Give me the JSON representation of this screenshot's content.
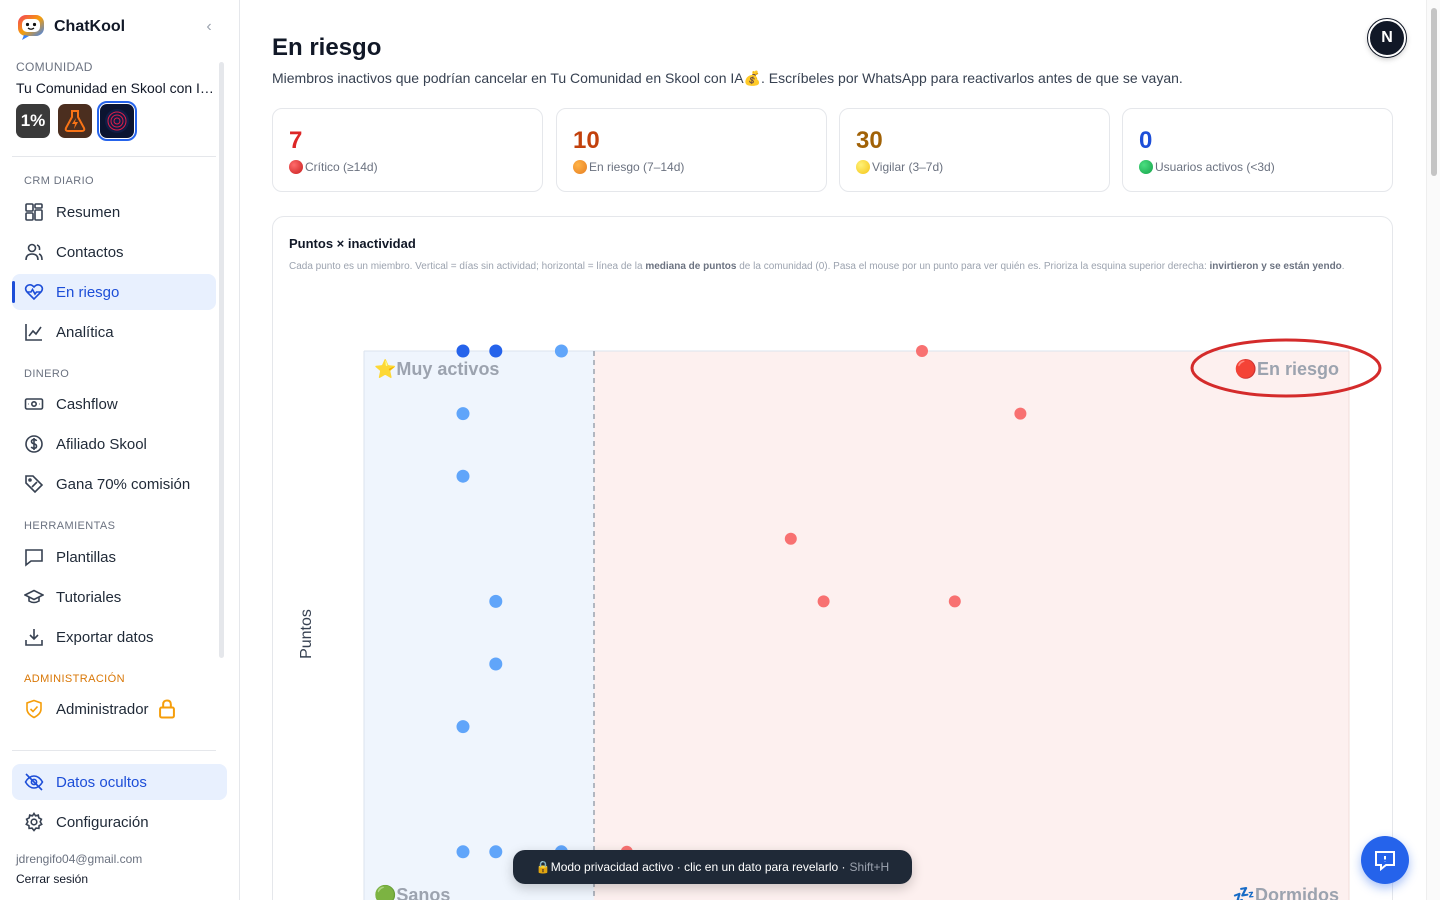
{
  "app": {
    "name": "ChatKool"
  },
  "sidebar": {
    "community_label": "COMUNIDAD",
    "community_name": "Tu Comunidad en Skool con IA💰",
    "community_avatars": [
      "1%",
      "⚡",
      ""
    ],
    "sections": {
      "crm": "CRM DIARIO",
      "money": "DINERO",
      "tools": "HERRAMIENTAS",
      "admin": "ADMINISTRACIÓN"
    },
    "items": {
      "resumen": "Resumen",
      "contactos": "Contactos",
      "en_riesgo": "En riesgo",
      "analitica": "Analítica",
      "cashflow": "Cashflow",
      "afiliado": "Afiliado Skool",
      "gana": "Gana 70% comisión",
      "plantillas": "Plantillas",
      "tutoriales": "Tutoriales",
      "exportar": "Exportar datos",
      "administrador": "Administrador"
    },
    "privacy_label": "Datos ocultos",
    "config_label": "Configuración",
    "user_email": "jdrengifo04@gmail.com",
    "logout_label": "Cerrar sesión"
  },
  "header": {
    "title": "En riesgo",
    "subtitle": "Miembros inactivos que podrían cancelar en Tu Comunidad en Skool con IA💰. Escríbeles por WhatsApp para reactivarlos antes de que se vayan.",
    "avatar_initial": "N"
  },
  "stats": [
    {
      "value": "7",
      "label": "Crítico (≥14d)",
      "color": "#dc2626",
      "dot": "red"
    },
    {
      "value": "10",
      "label": "En riesgo (7–14d)",
      "color": "#c2410c",
      "dot": "orange"
    },
    {
      "value": "30",
      "label": "Vigilar (3–7d)",
      "color": "#a16207",
      "dot": "yellow"
    },
    {
      "value": "0",
      "label": "Usuarios activos (<3d)",
      "color": "#1d4ed8",
      "dot": "green"
    }
  ],
  "chart_card": {
    "title": "Puntos × inactividad",
    "desc_1": "Cada punto es un miembro. Vertical = días sin actividad; horizontal = línea de la ",
    "desc_bold_1": "mediana de puntos",
    "desc_2": " de la comunidad (0). Pasa el mouse por un punto para ver quién es. Prioriza la esquina superior derecha: ",
    "desc_bold_2": "invirtieron y se están yendo",
    "desc_3": "."
  },
  "chart_data": {
    "type": "scatter",
    "ylabel": "Puntos",
    "quadrant_labels": {
      "top_left": "⭐Muy activos",
      "top_right": "🔴En riesgo",
      "bottom_left": "🟢Sanos",
      "bottom_right": "💤Dormidos"
    },
    "colors": {
      "active": "#60a5fa",
      "active_dark": "#2563eb",
      "risk": "#f87171",
      "risk_bg": "#fdf0ef",
      "active_bg": "#eff5fd",
      "highlight": "#d42b2b"
    },
    "points_active": [
      [
        0,
        0,
        "dark"
      ],
      [
        1,
        0,
        "dark"
      ],
      [
        3,
        0,
        "light"
      ],
      [
        0,
        1,
        "light"
      ],
      [
        0,
        2,
        "light"
      ],
      [
        1,
        4,
        "light"
      ],
      [
        1,
        5,
        "light"
      ],
      [
        0,
        6,
        "light"
      ],
      [
        0,
        8,
        "light"
      ],
      [
        1,
        8,
        "light"
      ],
      [
        3,
        8,
        "light"
      ]
    ],
    "points_risk": [
      [
        10,
        0
      ],
      [
        13,
        1
      ],
      [
        6,
        3
      ],
      [
        7,
        4
      ],
      [
        11,
        4
      ],
      [
        1,
        8
      ]
    ]
  },
  "toast": {
    "text": "🔒Modo privacidad activo · clic en un dato para revelarlo · ",
    "shortcut": "Shift+H"
  }
}
